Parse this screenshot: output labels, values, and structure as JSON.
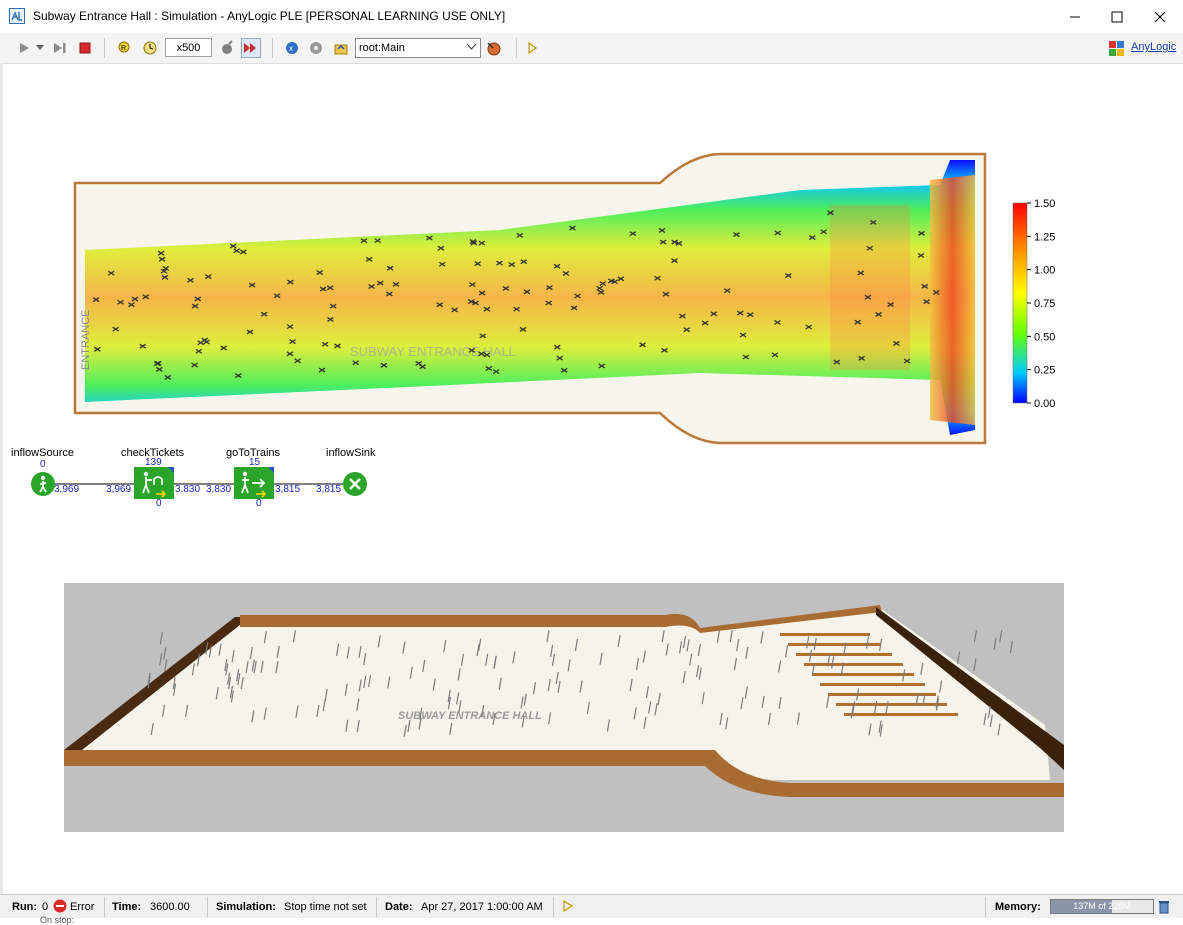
{
  "window": {
    "title": "Subway Entrance Hall : Simulation - AnyLogic PLE [PERSONAL LEARNING USE ONLY]",
    "minimize_icon": "minimize-icon",
    "maximize_icon": "maximize-icon",
    "close_icon": "close-icon"
  },
  "toolbar": {
    "speed": "x500",
    "experiment": "root:Main",
    "brand": "AnyLogic"
  },
  "heatmap": {
    "legend_ticks": [
      "1.50",
      "1.25",
      "1.00",
      "0.75",
      "0.50",
      "0.25",
      "0.00"
    ],
    "legend_colors": [
      "#ff0000",
      "#ff9900",
      "#ffff00",
      "#66ff00",
      "#00ccff",
      "#0000ff"
    ],
    "hall_label": "SUBWAY ENTRANCE HALL",
    "entrance_label": "ENTRANCE"
  },
  "flowchart": {
    "blocks": [
      {
        "name": "inflowSource",
        "top_count": "0",
        "out": "3,969"
      },
      {
        "name": "checkTickets",
        "top_count": "139",
        "in": "3,969",
        "out": "3,830",
        "bottom_count": "0"
      },
      {
        "name": "goToTrains",
        "top_count": "15",
        "in": "3,830",
        "out": "3,815",
        "bottom_count": "0"
      },
      {
        "name": "inflowSink",
        "in": "3,815"
      }
    ]
  },
  "view3d": {
    "floor_label": "SUBWAY ENTRANCE HALL"
  },
  "status": {
    "run_label": "Run:",
    "run_value": "0",
    "error_label": "Error",
    "time_label": "Time:",
    "time_value": "3600.00",
    "simulation_label": "Simulation:",
    "simulation_value": "Stop time not set",
    "date_label": "Date:",
    "date_value": "Apr 27, 2017 1:00:00 AM",
    "memory_label": "Memory:",
    "memory_value": "137M of 228M",
    "memory_fraction": 0.6,
    "below_text": "On stop:"
  }
}
